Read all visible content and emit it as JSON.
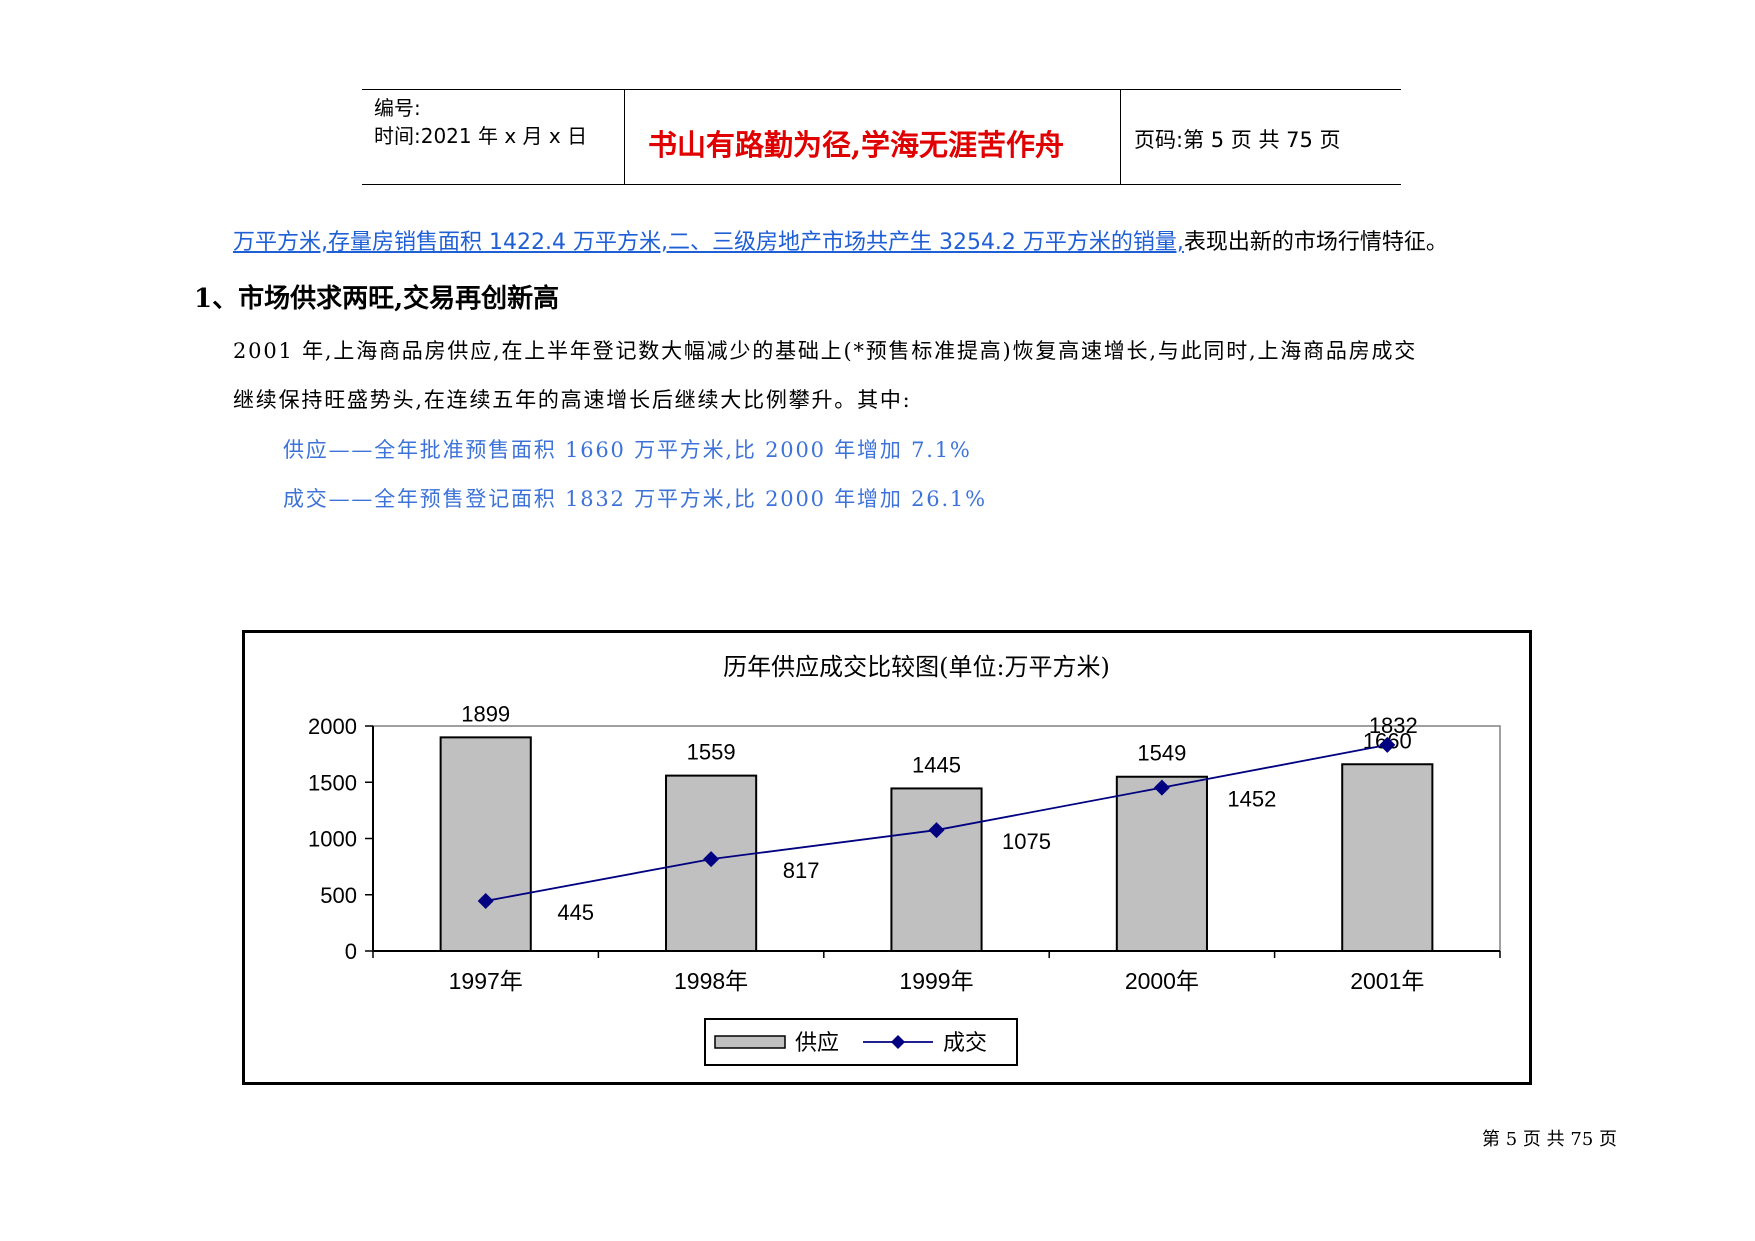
{
  "header": {
    "number_label": "编号:",
    "time_label": "时间:2021 年 x 月 x 日",
    "motto": "书山有路勤为径,学海无涯苦作舟",
    "page_label": "页码:第 5 页 共 75 页"
  },
  "intro": {
    "link_text": "万平方米,存量房销售面积 1422.4 万平方米,二、三级房地产市场共产生 3254.2 万平方米的销量,",
    "tail_text": "表现出新的市场行情特征。"
  },
  "section": {
    "heading": "1、市场供求两旺,交易再创新高",
    "para1_line1": "2001 年,上海商品房供应,在上半年登记数大幅减少的基础上(*预售标准提高)恢复高速增长,与此同时,上海商品房成交",
    "para1_line2": "继续保持旺盛势头,在连续五年的高速增长后继续大比例攀升。其中:",
    "supply_line": "供应——全年批准预售面积 1660 万平方米,比 2000 年增加 7.1%",
    "deal_line": "成交——全年预售登记面积 1832 万平方米,比 2000 年增加 26.1%"
  },
  "chart_data": {
    "type": "bar",
    "title": "历年供应成交比较图(单位:万平方米)",
    "categories": [
      "1997年",
      "1998年",
      "1999年",
      "2000年",
      "2001年"
    ],
    "series": [
      {
        "name": "供应",
        "kind": "bar",
        "values": [
          1899,
          1559,
          1445,
          1549,
          1660
        ],
        "color": "#c0c0c0"
      },
      {
        "name": "成交",
        "kind": "line",
        "values": [
          445,
          817,
          1075,
          1452,
          1832
        ],
        "color": "#000080"
      }
    ],
    "ylim": [
      0,
      2000
    ],
    "yticks": [
      "0",
      "500",
      "1000",
      "1500",
      "2000"
    ],
    "legend": "bottom-center",
    "grid": false
  },
  "footer": {
    "page_text": "第 5 页 共 75 页"
  }
}
